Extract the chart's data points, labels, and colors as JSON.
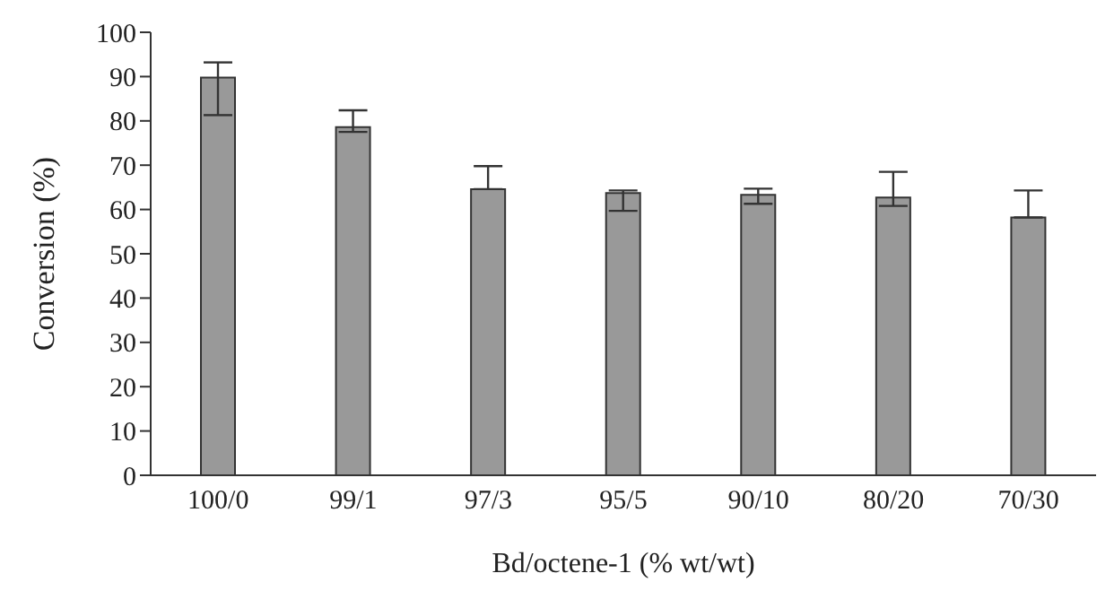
{
  "chart_data": {
    "type": "bar",
    "xlabel": "Bd/octene-1 (% wt/wt)",
    "ylabel": "Conversion (%)",
    "categories": [
      "100/0",
      "99/1",
      "97/3",
      "95/5",
      "90/10",
      "80/20",
      "70/30"
    ],
    "values": [
      89.8,
      78.6,
      64.6,
      63.7,
      63.3,
      62.7,
      58.2
    ],
    "errors": [
      [
        81.3,
        93.2
      ],
      [
        77.5,
        82.4
      ],
      [
        64.6,
        69.8
      ],
      [
        59.7,
        64.3
      ],
      [
        61.3,
        64.7
      ],
      [
        60.8,
        68.5
      ],
      [
        58.2,
        64.3
      ]
    ],
    "color": "#999999",
    "ylim": [
      0,
      100
    ],
    "yticks": [
      0,
      10,
      20,
      30,
      40,
      50,
      60,
      70,
      80,
      90,
      100
    ],
    "grid": false,
    "legend": false
  }
}
